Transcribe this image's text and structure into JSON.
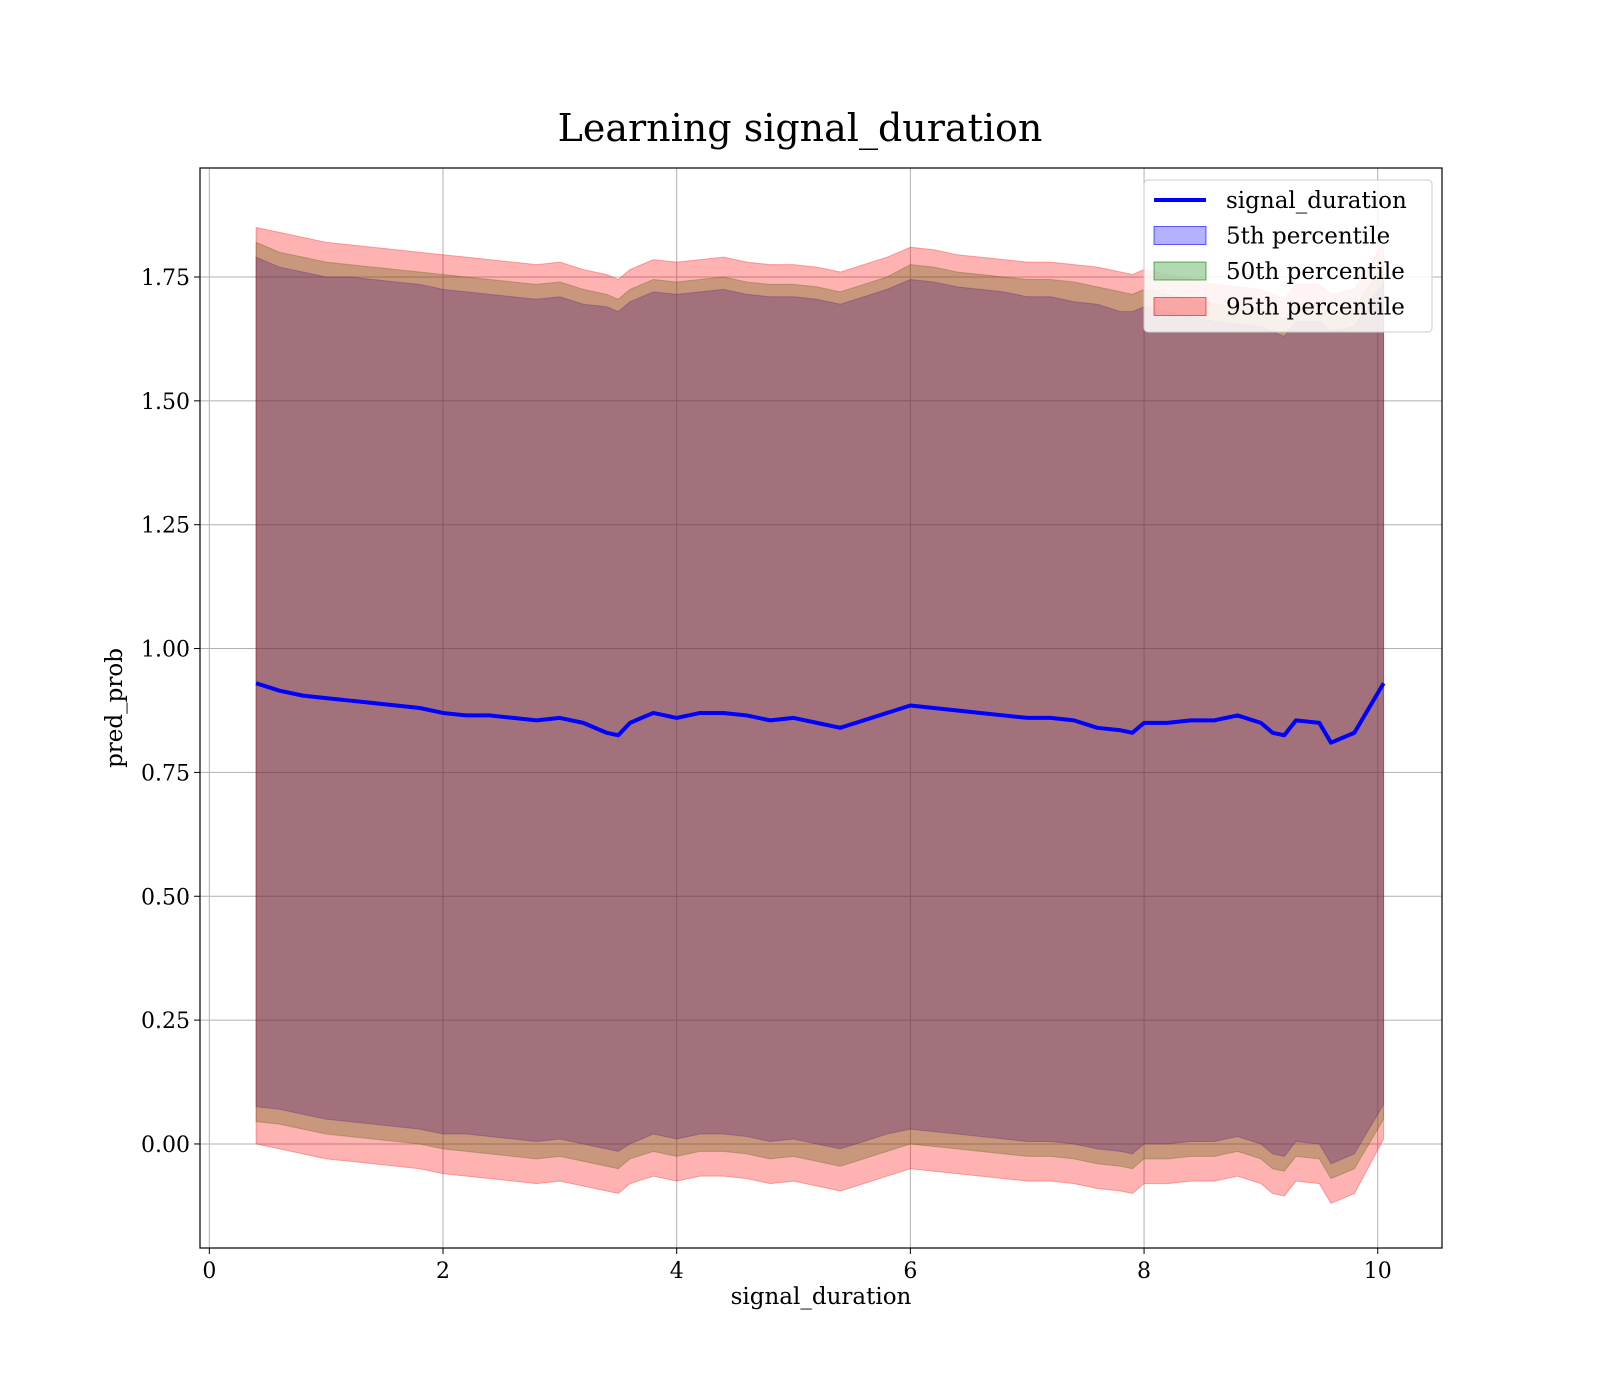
{
  "chart_data": {
    "type": "line",
    "title": "Learning signal_duration",
    "xlabel": "signal_duration",
    "ylabel": "pred_prob",
    "xlim": [
      -0.08,
      10.55
    ],
    "ylim": [
      -0.21,
      1.97
    ],
    "xticks": [
      0,
      2,
      4,
      6,
      8,
      10
    ],
    "xtick_labels": [
      "0",
      "2",
      "4",
      "6",
      "8",
      "10"
    ],
    "yticks": [
      0.0,
      0.25,
      0.5,
      0.75,
      1.0,
      1.25,
      1.5,
      1.75
    ],
    "ytick_labels": [
      "0.00",
      "0.25",
      "0.50",
      "0.75",
      "1.00",
      "1.25",
      "1.50",
      "1.75"
    ],
    "grid": true,
    "legend_position": "top-right",
    "x": [
      0.4,
      0.6,
      0.8,
      1.0,
      1.2,
      1.4,
      1.6,
      1.8,
      2.0,
      2.2,
      2.4,
      2.6,
      2.8,
      3.0,
      3.2,
      3.4,
      3.5,
      3.6,
      3.8,
      4.0,
      4.2,
      4.4,
      4.6,
      4.8,
      5.0,
      5.2,
      5.4,
      5.6,
      5.8,
      6.0,
      6.2,
      6.4,
      6.6,
      6.8,
      7.0,
      7.2,
      7.4,
      7.6,
      7.8,
      7.9,
      8.0,
      8.2,
      8.4,
      8.6,
      8.8,
      9.0,
      9.1,
      9.2,
      9.3,
      9.5,
      9.6,
      9.8,
      10.05
    ],
    "series": [
      {
        "name": "signal_duration",
        "type": "line",
        "color": "#0000ff",
        "values": [
          0.93,
          0.915,
          0.905,
          0.9,
          0.895,
          0.89,
          0.885,
          0.88,
          0.87,
          0.865,
          0.865,
          0.86,
          0.855,
          0.86,
          0.85,
          0.83,
          0.825,
          0.85,
          0.87,
          0.86,
          0.87,
          0.87,
          0.865,
          0.855,
          0.86,
          0.85,
          0.84,
          0.855,
          0.87,
          0.885,
          0.88,
          0.875,
          0.87,
          0.865,
          0.86,
          0.86,
          0.855,
          0.84,
          0.835,
          0.83,
          0.85,
          0.85,
          0.855,
          0.855,
          0.865,
          0.85,
          0.83,
          0.825,
          0.855,
          0.85,
          0.81,
          0.83,
          0.93
        ]
      },
      {
        "name": "5th percentile",
        "type": "band",
        "color": "#0000ff",
        "alpha": 0.3,
        "upper": [
          1.79,
          1.77,
          1.76,
          1.75,
          1.75,
          1.745,
          1.74,
          1.735,
          1.725,
          1.72,
          1.715,
          1.71,
          1.705,
          1.71,
          1.695,
          1.69,
          1.68,
          1.7,
          1.72,
          1.715,
          1.72,
          1.725,
          1.715,
          1.71,
          1.71,
          1.705,
          1.695,
          1.71,
          1.725,
          1.745,
          1.74,
          1.73,
          1.725,
          1.72,
          1.71,
          1.71,
          1.7,
          1.695,
          1.68,
          1.68,
          1.69,
          1.68,
          1.67,
          1.66,
          1.655,
          1.65,
          1.64,
          1.63,
          1.66,
          1.66,
          1.64,
          1.65,
          1.74
        ],
        "lower": [
          0.075,
          0.07,
          0.06,
          0.05,
          0.045,
          0.04,
          0.035,
          0.03,
          0.02,
          0.02,
          0.015,
          0.01,
          0.005,
          0.01,
          0.0,
          -0.01,
          -0.015,
          0.0,
          0.02,
          0.01,
          0.02,
          0.02,
          0.015,
          0.005,
          0.01,
          0.0,
          -0.01,
          0.005,
          0.02,
          0.03,
          0.025,
          0.02,
          0.015,
          0.01,
          0.005,
          0.005,
          0.0,
          -0.01,
          -0.015,
          -0.02,
          0.0,
          0.0,
          0.005,
          0.005,
          0.015,
          0.0,
          -0.02,
          -0.025,
          0.005,
          0.0,
          -0.04,
          -0.02,
          0.08
        ]
      },
      {
        "name": "50th percentile",
        "type": "band",
        "color": "#008000",
        "alpha": 0.3,
        "upper": [
          1.82,
          1.8,
          1.79,
          1.78,
          1.775,
          1.77,
          1.765,
          1.76,
          1.755,
          1.75,
          1.745,
          1.74,
          1.735,
          1.74,
          1.725,
          1.715,
          1.705,
          1.725,
          1.745,
          1.74,
          1.745,
          1.75,
          1.74,
          1.735,
          1.735,
          1.73,
          1.72,
          1.735,
          1.75,
          1.775,
          1.77,
          1.76,
          1.755,
          1.75,
          1.745,
          1.745,
          1.74,
          1.73,
          1.72,
          1.715,
          1.725,
          1.715,
          1.705,
          1.695,
          1.69,
          1.685,
          1.675,
          1.665,
          1.695,
          1.695,
          1.675,
          1.685,
          1.775
        ],
        "lower": [
          0.045,
          0.04,
          0.03,
          0.02,
          0.015,
          0.01,
          0.005,
          0.0,
          -0.01,
          -0.015,
          -0.02,
          -0.025,
          -0.03,
          -0.025,
          -0.035,
          -0.045,
          -0.05,
          -0.03,
          -0.015,
          -0.025,
          -0.015,
          -0.015,
          -0.02,
          -0.03,
          -0.025,
          -0.035,
          -0.045,
          -0.03,
          -0.015,
          0.0,
          -0.005,
          -0.01,
          -0.015,
          -0.02,
          -0.025,
          -0.025,
          -0.03,
          -0.04,
          -0.045,
          -0.05,
          -0.03,
          -0.03,
          -0.025,
          -0.025,
          -0.015,
          -0.03,
          -0.05,
          -0.055,
          -0.025,
          -0.03,
          -0.07,
          -0.05,
          0.05
        ]
      },
      {
        "name": "95th percentile",
        "type": "band",
        "color": "#ff0000",
        "alpha": 0.3,
        "upper": [
          1.85,
          1.84,
          1.83,
          1.82,
          1.815,
          1.81,
          1.805,
          1.8,
          1.795,
          1.79,
          1.785,
          1.78,
          1.775,
          1.78,
          1.765,
          1.755,
          1.745,
          1.765,
          1.785,
          1.78,
          1.785,
          1.79,
          1.78,
          1.775,
          1.775,
          1.77,
          1.76,
          1.775,
          1.79,
          1.81,
          1.805,
          1.795,
          1.79,
          1.785,
          1.78,
          1.78,
          1.775,
          1.77,
          1.76,
          1.755,
          1.765,
          1.755,
          1.745,
          1.735,
          1.73,
          1.725,
          1.715,
          1.705,
          1.735,
          1.735,
          1.715,
          1.725,
          1.82
        ],
        "lower": [
          0.0,
          -0.01,
          -0.02,
          -0.03,
          -0.035,
          -0.04,
          -0.045,
          -0.05,
          -0.06,
          -0.065,
          -0.07,
          -0.075,
          -0.08,
          -0.075,
          -0.085,
          -0.095,
          -0.1,
          -0.08,
          -0.065,
          -0.075,
          -0.065,
          -0.065,
          -0.07,
          -0.08,
          -0.075,
          -0.085,
          -0.095,
          -0.08,
          -0.065,
          -0.05,
          -0.055,
          -0.06,
          -0.065,
          -0.07,
          -0.075,
          -0.075,
          -0.08,
          -0.09,
          -0.095,
          -0.1,
          -0.08,
          -0.08,
          -0.075,
          -0.075,
          -0.065,
          -0.08,
          -0.1,
          -0.105,
          -0.075,
          -0.08,
          -0.12,
          -0.1,
          0.01
        ]
      }
    ],
    "legend_entries": [
      "signal_duration",
      "5th percentile",
      "50th percentile",
      "95th percentile"
    ]
  }
}
